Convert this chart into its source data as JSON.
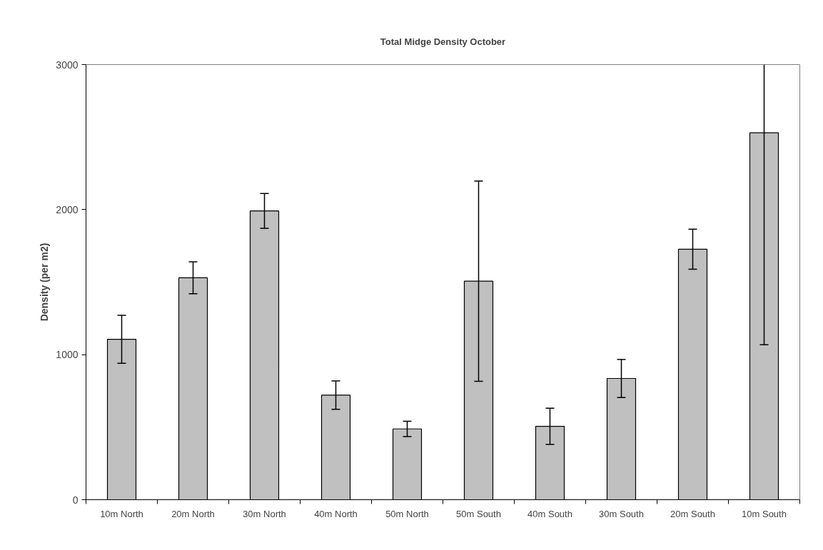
{
  "chart_data": {
    "type": "bar",
    "title": "Total Midge Density October",
    "ylabel": "Density (per m2)",
    "categories": [
      "10m North",
      "20m North",
      "30m North",
      "40m North",
      "50m North",
      "50m South",
      "40m South",
      "30m South",
      "20m South",
      "10m South"
    ],
    "values": [
      1106,
      1530,
      1991,
      721,
      488,
      1507,
      506,
      836,
      1727,
      2530
    ],
    "errors": [
      165,
      110,
      120,
      98,
      53,
      690,
      125,
      131,
      138,
      [
        1069,
        3000
      ]
    ],
    "color": "#c0c0c0",
    "ylim": [
      0,
      3000
    ],
    "yticks": [
      0,
      1000,
      2000,
      3000
    ],
    "grid": false
  }
}
